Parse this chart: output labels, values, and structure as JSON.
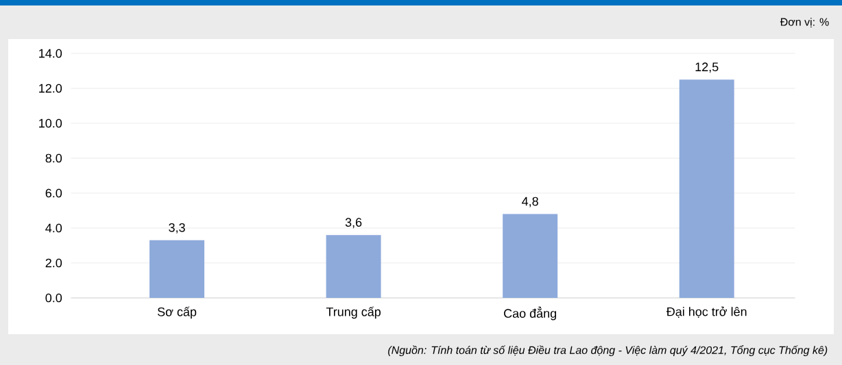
{
  "chart_data": {
    "type": "bar",
    "categories": [
      "Sơ cấp",
      "Trung cấp",
      "Cao đẳng",
      "Đại học trở lên"
    ],
    "values": [
      3.3,
      3.6,
      4.8,
      12.5
    ],
    "value_labels": [
      "3,3",
      "3,6",
      "4,8",
      "12,5"
    ],
    "color": "#8eaadb",
    "ylim": [
      0,
      14
    ],
    "yticks": [
      {
        "value": 0,
        "label": "0.0"
      },
      {
        "value": 2,
        "label": "2.0"
      },
      {
        "value": 4,
        "label": "4.0"
      },
      {
        "value": 6,
        "label": "6.0"
      },
      {
        "value": 8,
        "label": "8.0"
      },
      {
        "value": 10,
        "label": "10.0"
      },
      {
        "value": 12,
        "label": "12.0"
      },
      {
        "value": 14,
        "label": "14.0"
      }
    ],
    "grid": "y",
    "annotations": [
      "Đơn vị: %",
      "(Nguồn: Tính toán từ số liệu Điều tra Lao động - Việc làm quý 4/2021, Tổng cục Thống kê)"
    ]
  }
}
